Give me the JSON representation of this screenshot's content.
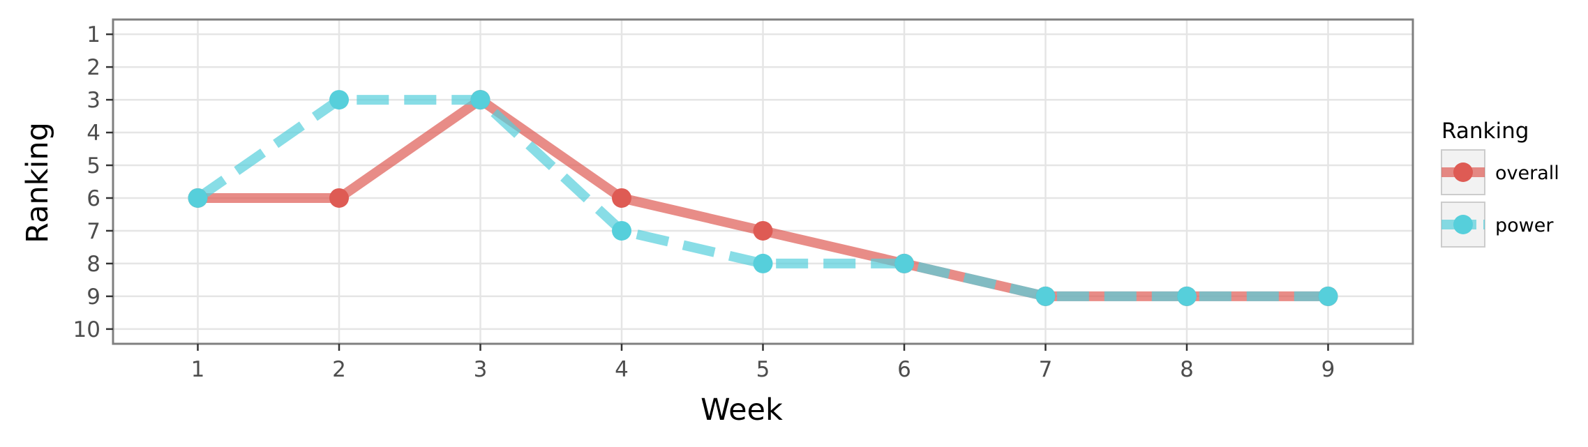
{
  "chart_data": {
    "type": "line",
    "xlabel": "Week",
    "ylabel": "Ranking",
    "x": [
      1,
      2,
      3,
      4,
      5,
      6,
      7,
      8,
      9
    ],
    "xlim": [
      0.4,
      9.6
    ],
    "ylim": [
      10.45,
      0.55
    ],
    "y_reversed": true,
    "x_ticks": [
      "1",
      "2",
      "3",
      "4",
      "5",
      "6",
      "7",
      "8",
      "9"
    ],
    "y_ticks": [
      "1",
      "2",
      "3",
      "4",
      "5",
      "6",
      "7",
      "8",
      "9",
      "10"
    ],
    "grid": true,
    "legend": {
      "title": "Ranking",
      "position": "right"
    },
    "series": [
      {
        "name": "overall",
        "values": [
          6,
          6,
          3,
          6,
          7,
          8,
          9,
          9,
          9
        ],
        "color": "#DE5B54",
        "line_style": "solid"
      },
      {
        "name": "power",
        "values": [
          6,
          3,
          3,
          7,
          8,
          8,
          9,
          9,
          9
        ],
        "color": "#56CFDB",
        "line_style": "dashed"
      }
    ]
  }
}
